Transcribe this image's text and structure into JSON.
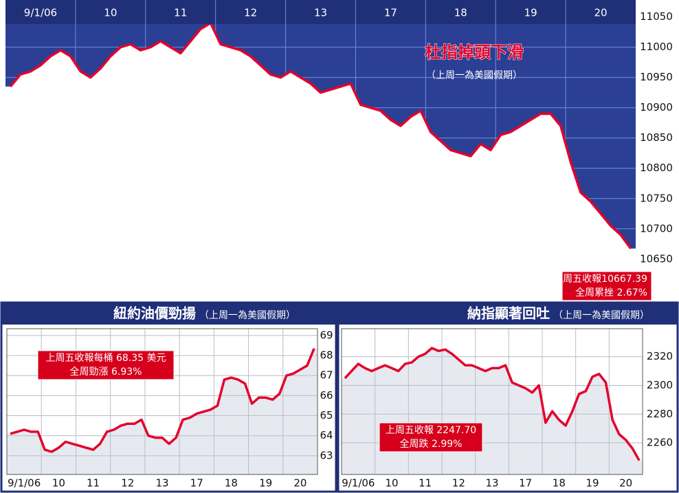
{
  "chart_data": [
    {
      "type": "area",
      "title": "杜指掉頭下滑",
      "subtitle": "（上周一為美國假期）",
      "annotation": [
        "上周五收報10667.39",
        "全周累挫 2.67%"
      ],
      "categories": [
        null,
        null,
        null,
        "9/1/06",
        null,
        null,
        null,
        null,
        null,
        null,
        "10",
        null,
        null,
        null,
        null,
        null,
        null,
        "11",
        null,
        null,
        null,
        null,
        null,
        null,
        "12",
        null,
        null,
        null,
        null,
        null,
        null,
        "13",
        null,
        null,
        null,
        null,
        null,
        null,
        "17",
        null,
        null,
        null,
        null,
        null,
        null,
        "18",
        null,
        null,
        null,
        null,
        null,
        null,
        "19",
        null,
        null,
        null,
        null,
        null,
        null,
        "20",
        null,
        null,
        null
      ],
      "values": [
        10935,
        10955,
        10960,
        10970,
        10985,
        10995,
        10985,
        10960,
        10950,
        10965,
        10985,
        11000,
        11005,
        10995,
        11000,
        11010,
        11000,
        10990,
        11010,
        11030,
        11040,
        11005,
        11000,
        10995,
        10985,
        10970,
        10955,
        10950,
        10960,
        10950,
        10940,
        10925,
        10930,
        10935,
        10940,
        10905,
        10900,
        10895,
        10880,
        10870,
        10885,
        10895,
        10860,
        10845,
        10830,
        10825,
        10820,
        10840,
        10830,
        10855,
        10860,
        10870,
        10880,
        10890,
        10890,
        10870,
        10810,
        10760,
        10745,
        10725,
        10705,
        10690,
        10667.39
      ],
      "color": "#e4002b",
      "background": "#2b3f94",
      "fill": "#ffffff",
      "grid_color": "#6f8fe0",
      "ylim": [
        10635,
        11078
      ],
      "yticks": [
        10650,
        10700,
        10750,
        10800,
        10850,
        10900,
        10950,
        11000,
        11050
      ],
      "grid": true
    },
    {
      "type": "area",
      "title": "紐約油價勁揚",
      "subtitle": "（上周一為美國假期）",
      "annotation": [
        "上周五收報每桶 68.35 美元",
        "全周勁漲 6.93%"
      ],
      "categories": [
        null,
        null,
        "9/1/06",
        null,
        null,
        null,
        null,
        "10",
        null,
        null,
        null,
        null,
        "11",
        null,
        null,
        null,
        null,
        "12",
        null,
        null,
        null,
        null,
        "13",
        null,
        null,
        null,
        null,
        "17",
        null,
        null,
        null,
        null,
        "18",
        null,
        null,
        null,
        null,
        "19",
        null,
        null,
        null,
        null,
        "20",
        null,
        null
      ],
      "values": [
        64.1,
        64.2,
        64.3,
        64.2,
        64.2,
        63.3,
        63.2,
        63.4,
        63.7,
        63.6,
        63.5,
        63.4,
        63.3,
        63.6,
        64.2,
        64.3,
        64.5,
        64.6,
        64.6,
        64.8,
        64.0,
        63.9,
        63.9,
        63.6,
        63.9,
        64.8,
        64.9,
        65.1,
        65.2,
        65.3,
        65.5,
        66.8,
        66.9,
        66.8,
        66.6,
        65.6,
        65.9,
        65.9,
        65.8,
        66.1,
        67.0,
        67.1,
        67.3,
        67.5,
        68.35
      ],
      "color": "#e4002b",
      "background": "#ffffff",
      "fill": "#e6e9f0",
      "grid_color": "#b8bcc6",
      "ylim": [
        62.07,
        69.34
      ],
      "yticks": [
        63,
        64,
        65,
        66,
        67,
        68,
        69
      ],
      "grid": true
    },
    {
      "type": "area",
      "title": "納指顯著回吐",
      "subtitle": "（上周一為美國假期）",
      "annotation": [
        "上周五收報 2247.70",
        "全周跌 2.99%"
      ],
      "categories": [
        null,
        null,
        "9/1/06",
        null,
        null,
        null,
        null,
        "10",
        null,
        null,
        null,
        null,
        "11",
        null,
        null,
        null,
        null,
        "12",
        null,
        null,
        null,
        null,
        "13",
        null,
        null,
        null,
        null,
        "17",
        null,
        null,
        null,
        null,
        "18",
        null,
        null,
        null,
        null,
        "19",
        null,
        null,
        null,
        null,
        "20",
        null,
        null
      ],
      "values": [
        2305,
        2310,
        2315,
        2312,
        2310,
        2312,
        2314,
        2312,
        2310,
        2315,
        2316,
        2320,
        2322,
        2326,
        2324,
        2325,
        2322,
        2318,
        2314,
        2314,
        2312,
        2310,
        2312,
        2312,
        2314,
        2302,
        2300,
        2298,
        2295,
        2300,
        2274,
        2282,
        2276,
        2272,
        2282,
        2294,
        2296,
        2306,
        2308,
        2302,
        2276,
        2266,
        2262,
        2256,
        2247.7
      ],
      "color": "#e4002b",
      "background": "#ffffff",
      "fill": "#e6e9f0",
      "grid_color": "#b8bcc6",
      "ylim": [
        2238,
        2339.5
      ],
      "yticks": [
        2260,
        2280,
        2300,
        2320
      ],
      "grid": true
    }
  ]
}
